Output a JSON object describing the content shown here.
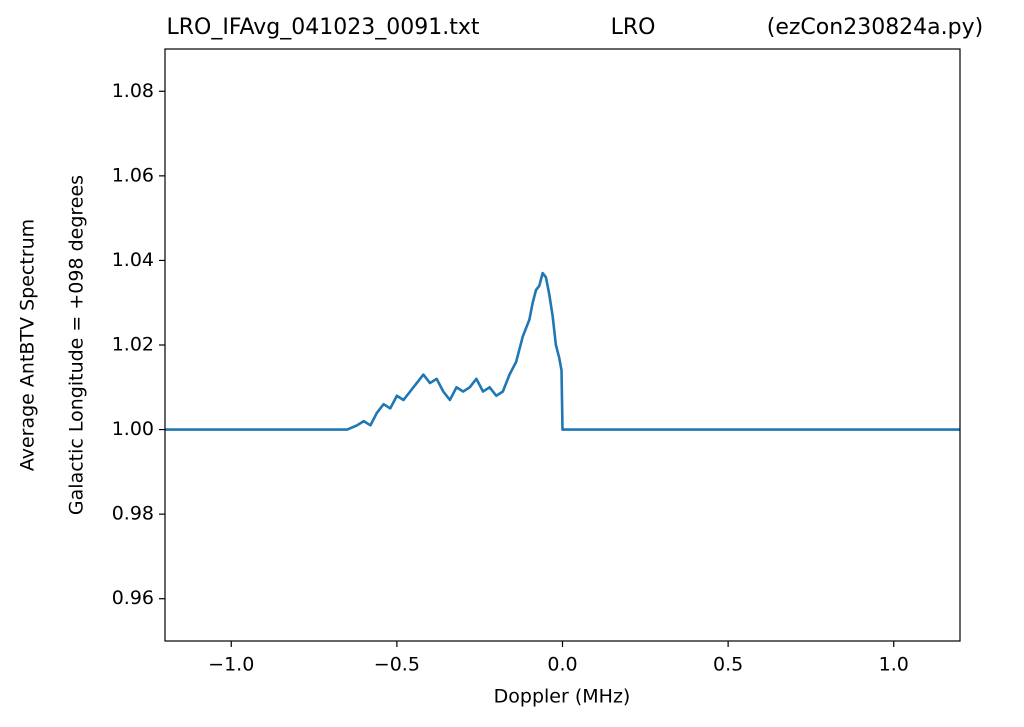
{
  "chart_data": {
    "type": "line",
    "title": [
      "LRO_IFAvg_041023_0091.txt",
      "LRO",
      "(ezCon230824a.py)"
    ],
    "xlabel": "Doppler (MHz)",
    "ylabel": [
      "Average AntBTV Spectrum",
      "Galactic Longitude = +098 degrees"
    ],
    "x": [
      -1.2,
      -0.65,
      -0.62,
      -0.6,
      -0.58,
      -0.56,
      -0.54,
      -0.52,
      -0.5,
      -0.48,
      -0.46,
      -0.44,
      -0.42,
      -0.4,
      -0.38,
      -0.36,
      -0.34,
      -0.32,
      -0.3,
      -0.28,
      -0.26,
      -0.24,
      -0.22,
      -0.2,
      -0.18,
      -0.16,
      -0.14,
      -0.12,
      -0.1,
      -0.09,
      -0.08,
      -0.07,
      -0.06,
      -0.05,
      -0.04,
      -0.03,
      -0.02,
      -0.01,
      -0.003,
      0.0,
      1.2
    ],
    "series": [
      {
        "color": "#1f77b4",
        "values": [
          1.0,
          1.0,
          1.001,
          1.002,
          1.001,
          1.004,
          1.006,
          1.005,
          1.008,
          1.007,
          1.009,
          1.011,
          1.013,
          1.011,
          1.012,
          1.009,
          1.007,
          1.01,
          1.009,
          1.01,
          1.012,
          1.009,
          1.01,
          1.008,
          1.009,
          1.013,
          1.016,
          1.022,
          1.026,
          1.03,
          1.033,
          1.034,
          1.037,
          1.036,
          1.032,
          1.027,
          1.02,
          1.017,
          1.014,
          1.0,
          1.0
        ]
      }
    ],
    "xlim": [
      -1.2,
      1.2
    ],
    "xticks": [
      {
        "value": -1.0,
        "label": "−1.0"
      },
      {
        "value": -0.5,
        "label": "−0.5"
      },
      {
        "value": 0.0,
        "label": "0.0"
      },
      0.5,
      {
        "value": 1.0,
        "label": "1.0"
      }
    ],
    "ylim": [
      0.95,
      1.09
    ],
    "yticks": [
      0.96,
      0.98,
      {
        "value": 1.0,
        "label": "1.00"
      },
      1.02,
      1.04,
      1.06,
      1.08
    ]
  }
}
